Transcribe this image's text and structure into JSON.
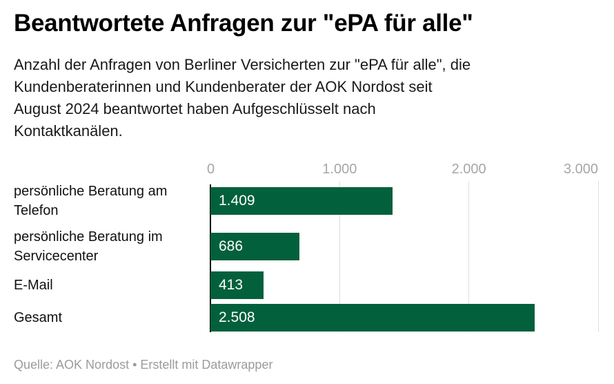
{
  "header": {
    "title": "Beantwortete Anfragen zur \"ePA für alle\"",
    "subtitle": "Anzahl der Anfragen von Berliner Versicherten zur \"ePA für alle\", die\nKundenberaterinnen und Kundenberater der AOK Nordost seit\nAugust 2024 beantwortet haben Aufgeschlüsselt nach\nKontaktkanälen."
  },
  "chart_data": {
    "type": "bar",
    "orientation": "horizontal",
    "title": "Beantwortete Anfragen zur \"ePA für alle\"",
    "categories": [
      "persönliche Beratung am Telefon",
      "persönliche Beratung im Servicecenter",
      "E-Mail",
      "Gesamt"
    ],
    "values": [
      1409,
      686,
      413,
      2508
    ],
    "value_labels": [
      "1.409",
      "686",
      "413",
      "2.508"
    ],
    "xlim": [
      0,
      3000
    ],
    "x_ticks": [
      0,
      1000,
      2000,
      3000
    ],
    "x_tick_labels": [
      "0",
      "1.000",
      "2.000",
      "3.000"
    ],
    "grid": true,
    "legend": "none",
    "bar_color": "#03603c"
  },
  "colors": {
    "bar": "#03603c",
    "axis_label": "#a6a6a6",
    "gridline": "#dedede",
    "axis_line": "#0a0a0a",
    "text": "#111111",
    "footer": "#9b9b9b"
  },
  "footer": {
    "text": "Quelle: AOK Nordost • Erstellt mit Datawrapper"
  }
}
